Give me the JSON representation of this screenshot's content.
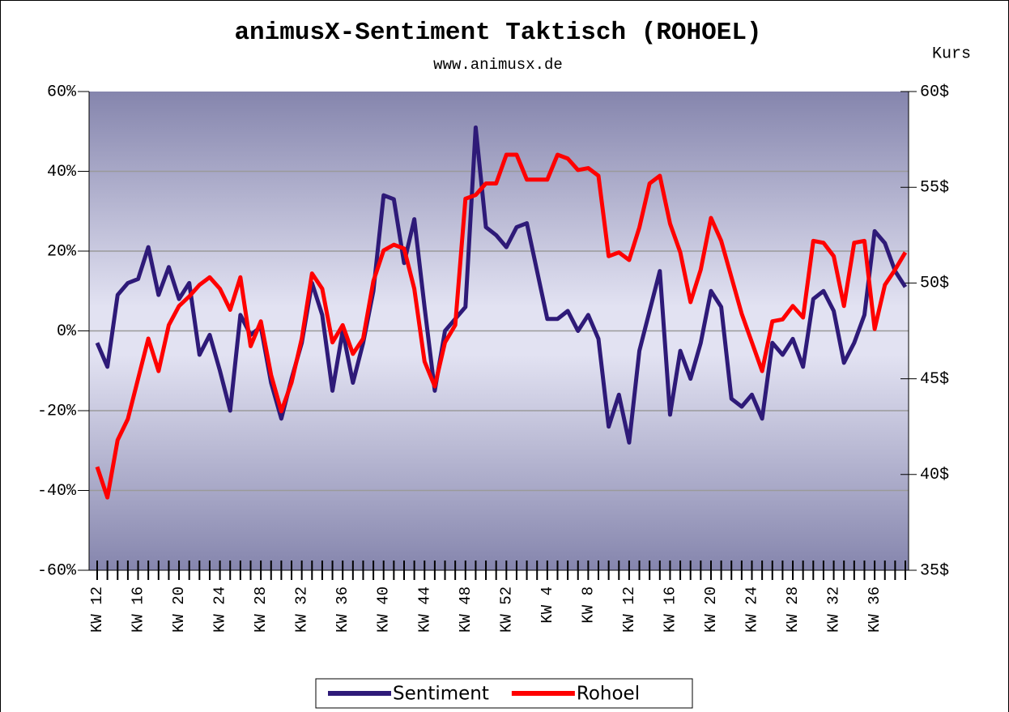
{
  "chart_data": {
    "type": "line",
    "title": "animusX-Sentiment Taktisch (ROHOEL)",
    "subtitle": "www.animusx.de",
    "y2_label": "Kurs",
    "categories": [
      "KW 12",
      null,
      null,
      null,
      "KW 16",
      null,
      null,
      null,
      "KW 20",
      null,
      null,
      null,
      "KW 24",
      null,
      null,
      null,
      "KW 28",
      null,
      null,
      null,
      "KW 32",
      null,
      null,
      null,
      "KW 36",
      null,
      null,
      null,
      "KW 40",
      null,
      null,
      null,
      "KW 44",
      null,
      null,
      null,
      "KW 48",
      null,
      null,
      null,
      "KW 52",
      null,
      null,
      null,
      "KW 4",
      null,
      null,
      null,
      "KW 8",
      null,
      null,
      null,
      "KW 12",
      null,
      null,
      null,
      "KW 16",
      null,
      null,
      null,
      "KW 20",
      null,
      null,
      null,
      "KW 24",
      null,
      null,
      null,
      "KW 28",
      null,
      null,
      null,
      "KW 32",
      null,
      null,
      null,
      "KW 36",
      null,
      null,
      null
    ],
    "series": [
      {
        "name": "Sentiment",
        "color": "#2e1a78",
        "values": [
          -3,
          -9,
          9,
          12,
          13,
          21,
          9,
          16,
          8,
          12,
          -6,
          -1,
          -10,
          -20,
          4,
          -1,
          1,
          -13,
          -22,
          -12,
          -3,
          12,
          4,
          -15,
          0,
          -13,
          -3,
          10,
          34,
          33,
          17,
          28,
          6,
          -15,
          0,
          3,
          6,
          51,
          26,
          24,
          21,
          26,
          27,
          15,
          3,
          3,
          5,
          0,
          4,
          -2,
          -24,
          -16,
          -28,
          -5,
          5,
          15,
          -21,
          -5,
          -12,
          -3,
          10,
          6,
          -17,
          -19,
          -16,
          -22,
          -3,
          -6,
          -2,
          -9,
          8,
          10,
          5,
          -8,
          -3,
          4,
          25,
          22,
          15,
          11
        ]
      },
      {
        "name": "Rohoel",
        "color": "#ff0000",
        "axis": "y2",
        "values": [
          40.4,
          38.8,
          41.8,
          42.9,
          45,
          47.1,
          45.4,
          47.8,
          48.8,
          49.3,
          49.9,
          50.3,
          49.7,
          48.6,
          50.3,
          46.7,
          48,
          45.2,
          43.3,
          44.8,
          47.1,
          50.5,
          49.7,
          46.9,
          47.8,
          46.3,
          47.1,
          50.1,
          51.7,
          52,
          51.8,
          49.7,
          45.9,
          44.6,
          46.9,
          47.8,
          54.4,
          54.6,
          55.2,
          55.2,
          56.7,
          56.7,
          55.4,
          55.4,
          55.4,
          56.7,
          56.5,
          55.9,
          56,
          55.6,
          51.4,
          51.6,
          51.2,
          52.9,
          55.2,
          55.6,
          53.1,
          51.6,
          49,
          50.7,
          53.4,
          52.2,
          50.3,
          48.4,
          46.9,
          45.4,
          48,
          48.1,
          48.8,
          48.2,
          52.2,
          52.1,
          51.4,
          48.8,
          52.1,
          52.2,
          47.6,
          49.9,
          50.7,
          51.6
        ]
      }
    ],
    "ylim": [
      -60,
      60
    ],
    "yticks": [
      {
        "value": -60,
        "label": "-60%"
      },
      {
        "value": -40,
        "label": "-40%"
      },
      {
        "value": -20,
        "label": "-20%"
      },
      {
        "value": 0,
        "label": "0%"
      },
      {
        "value": 20,
        "label": "20%"
      },
      {
        "value": 40,
        "label": "40%"
      },
      {
        "value": 60,
        "label": "60%"
      }
    ],
    "y2lim": [
      35,
      60
    ],
    "y2ticks": [
      {
        "value": 35,
        "label": "35$"
      },
      {
        "value": 40,
        "label": "40$"
      },
      {
        "value": 45,
        "label": "45$"
      },
      {
        "value": 50,
        "label": "50$"
      },
      {
        "value": 55,
        "label": "55$"
      },
      {
        "value": 60,
        "label": "60$"
      }
    ],
    "grid": true,
    "legend": "bottom"
  }
}
